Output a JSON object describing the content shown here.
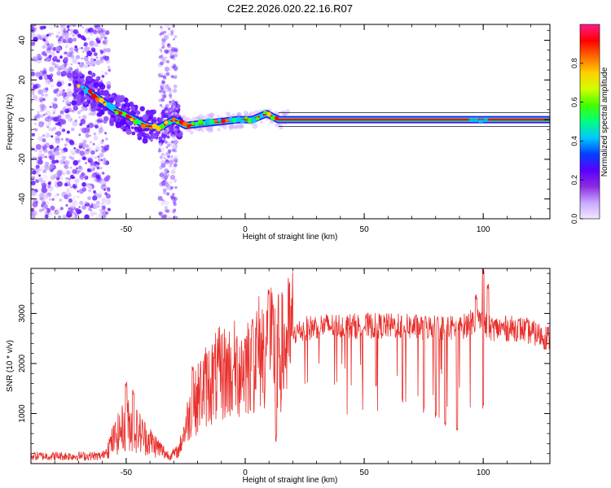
{
  "title": "C2E2.2026.020.22.16.R07",
  "colors": {
    "snr_line": "#e8302c",
    "colormap": [
      "#f2e8ff",
      "#c8a8ff",
      "#8a2be2",
      "#5a00ff",
      "#0040ff",
      "#00c8ff",
      "#00ff80",
      "#40ff00",
      "#d0ff00",
      "#ffd000",
      "#ff6a00",
      "#ff0000",
      "#ff1a8c"
    ]
  },
  "chart_data": [
    {
      "type": "heatmap",
      "xlabel": "Height of straight line (km)",
      "ylabel": "Frequency (Hz)",
      "xlim": [
        -90,
        128
      ],
      "ylim": [
        -50,
        48
      ],
      "xticks": [
        -50,
        0,
        50,
        100
      ],
      "xtick_labels": [
        "-50",
        "0",
        "50",
        "100"
      ],
      "yticks": [
        -40,
        -20,
        0,
        20,
        40
      ],
      "ytick_labels": [
        "-40",
        "-20",
        "0",
        "20",
        "40"
      ],
      "ridge": [
        {
          "x": -68,
          "y": 16
        },
        {
          "x": -62,
          "y": 11
        },
        {
          "x": -55,
          "y": 5
        },
        {
          "x": -48,
          "y": 1
        },
        {
          "x": -42,
          "y": -3
        },
        {
          "x": -36,
          "y": -4
        },
        {
          "x": -30,
          "y": 0
        },
        {
          "x": -25,
          "y": -3
        },
        {
          "x": -18,
          "y": -2
        },
        {
          "x": -10,
          "y": -1
        },
        {
          "x": -3,
          "y": 0
        },
        {
          "x": 3,
          "y": 0
        },
        {
          "x": 9,
          "y": 3
        },
        {
          "x": 14,
          "y": 0
        },
        {
          "x": 128,
          "y": 0
        }
      ],
      "colorbar": {
        "label": "Normalized spectral amplitude",
        "range": [
          0,
          1
        ],
        "ticks": [
          0,
          0.2,
          0.4,
          0.6,
          0.8
        ],
        "tick_labels": [
          "0.0",
          "0.2",
          "0.4",
          "0.6",
          "0.8"
        ]
      }
    },
    {
      "type": "line",
      "xlabel": "Height of straight line (km)",
      "ylabel": "SNR (10 * v/v)",
      "xlim": [
        -90,
        128
      ],
      "ylim": [
        0,
        3900
      ],
      "xticks": [
        -50,
        0,
        50,
        100
      ],
      "xtick_labels": [
        "-50",
        "0",
        "50",
        "100"
      ],
      "yticks": [
        1000,
        2000,
        3000
      ],
      "ytick_labels": [
        "1000",
        "2000",
        "3000"
      ],
      "envelope": [
        {
          "x": -90,
          "y": 150
        },
        {
          "x": -60,
          "y": 150
        },
        {
          "x": -55,
          "y": 500
        },
        {
          "x": -50,
          "y": 800
        },
        {
          "x": -45,
          "y": 650
        },
        {
          "x": -40,
          "y": 450
        },
        {
          "x": -32,
          "y": 150
        },
        {
          "x": -28,
          "y": 250
        },
        {
          "x": -24,
          "y": 900
        },
        {
          "x": -18,
          "y": 1500
        },
        {
          "x": -10,
          "y": 1800
        },
        {
          "x": -2,
          "y": 1900
        },
        {
          "x": 4,
          "y": 2200
        },
        {
          "x": 10,
          "y": 2300
        },
        {
          "x": 15,
          "y": 2200
        },
        {
          "x": 20,
          "y": 2600
        },
        {
          "x": 30,
          "y": 2750
        },
        {
          "x": 60,
          "y": 2750
        },
        {
          "x": 90,
          "y": 2700
        },
        {
          "x": 98,
          "y": 2900
        },
        {
          "x": 102,
          "y": 2700
        },
        {
          "x": 115,
          "y": 2700
        },
        {
          "x": 128,
          "y": 2500
        }
      ],
      "spikes": [
        {
          "x": -50,
          "y": 1650
        },
        {
          "x": -47,
          "y": 1500
        },
        {
          "x": -22,
          "y": 1950
        },
        {
          "x": -5,
          "y": 2000
        },
        {
          "x": 3,
          "y": 2900
        },
        {
          "x": 10,
          "y": 3500
        },
        {
          "x": 13,
          "y": 3300
        },
        {
          "x": 97,
          "y": 3400
        },
        {
          "x": 100,
          "y": 3900
        },
        {
          "x": 102,
          "y": 3600
        }
      ],
      "dips": [
        {
          "x": 13,
          "y": 400
        },
        {
          "x": 55,
          "y": 1500
        },
        {
          "x": 66,
          "y": 1200
        },
        {
          "x": 75,
          "y": 1000
        },
        {
          "x": 80,
          "y": 900
        },
        {
          "x": 84,
          "y": 700
        },
        {
          "x": 89,
          "y": 600
        },
        {
          "x": 100,
          "y": 1100
        }
      ]
    }
  ]
}
